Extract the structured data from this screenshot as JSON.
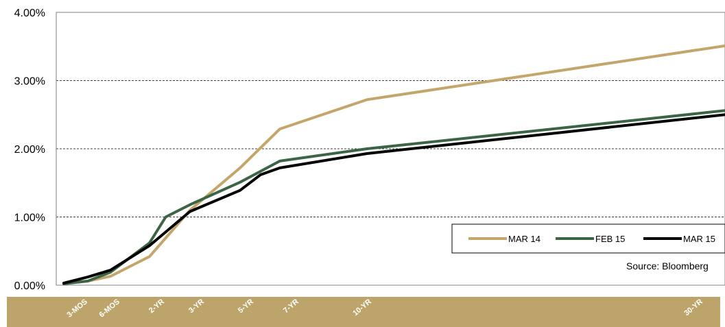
{
  "chart_data": {
    "type": "line",
    "categories": [
      "3-MOS",
      "6-MOS",
      "2-YR",
      "3-YR",
      "5-YR",
      "7-YR",
      "10-YR",
      "30-YR"
    ],
    "x_axis_band_color": "#bda46b",
    "ylim": [
      0,
      4
    ],
    "yticks": [
      0,
      1,
      2,
      3,
      4
    ],
    "ytick_labels": [
      "0.00%",
      "1.00%",
      "2.00%",
      "3.00%",
      "4.00%"
    ],
    "grid": "horizontal dashed",
    "series": [
      {
        "name": "MAR 14",
        "color": "#c4a56a",
        "x": [
          0.083,
          0.25,
          0.5,
          2,
          3,
          5,
          7,
          10,
          30
        ],
        "y": [
          0.03,
          0.06,
          0.13,
          0.42,
          1.1,
          1.72,
          2.29,
          2.72,
          3.51
        ]
      },
      {
        "name": "FEB 15",
        "color": "#3c6446",
        "x": [
          0.083,
          0.25,
          0.5,
          2,
          2.4,
          3,
          5,
          7,
          10,
          30
        ],
        "y": [
          0.02,
          0.06,
          0.19,
          0.62,
          1.0,
          1.18,
          1.51,
          1.82,
          2.0,
          2.56
        ]
      },
      {
        "name": "MAR 15",
        "color": "#000000",
        "x": [
          0.083,
          0.25,
          0.5,
          2,
          3,
          5,
          6,
          7,
          10,
          30
        ],
        "y": [
          0.03,
          0.12,
          0.22,
          0.58,
          1.08,
          1.39,
          1.62,
          1.72,
          1.93,
          2.5
        ]
      }
    ],
    "legend": {
      "placement": "bottom-right"
    },
    "source": "Source: Bloomberg"
  }
}
